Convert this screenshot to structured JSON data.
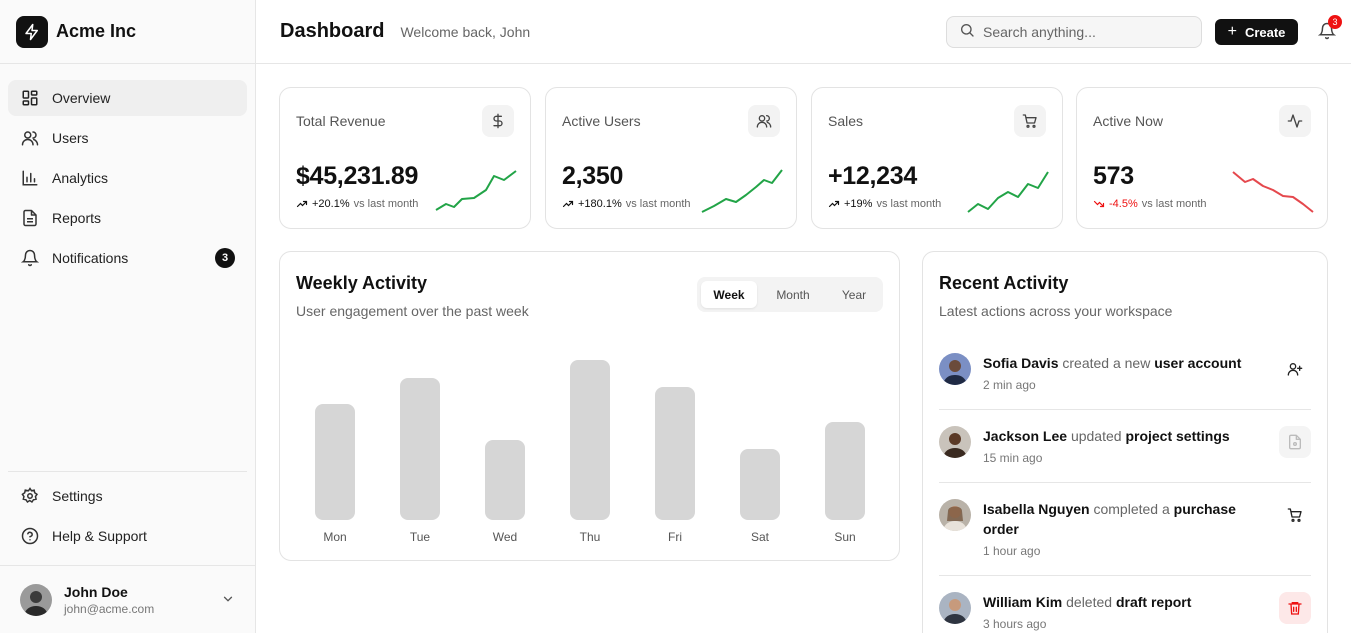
{
  "brand": {
    "name": "Acme Inc"
  },
  "sidebar": {
    "items": [
      {
        "label": "Overview",
        "icon": "grid-icon"
      },
      {
        "label": "Users",
        "icon": "users-icon"
      },
      {
        "label": "Analytics",
        "icon": "bar-chart-icon"
      },
      {
        "label": "Reports",
        "icon": "file-icon"
      },
      {
        "label": "Notifications",
        "icon": "bell-icon",
        "badge": "3"
      }
    ],
    "bottom_items": [
      {
        "label": "Settings",
        "icon": "gear-icon"
      },
      {
        "label": "Help & Support",
        "icon": "help-icon"
      }
    ],
    "user": {
      "name": "John Doe",
      "email": "john@acme.com"
    }
  },
  "header": {
    "title": "Dashboard",
    "welcome": "Welcome back, John",
    "search_placeholder": "Search anything...",
    "create_label": "Create",
    "notification_count": "3"
  },
  "stats": [
    {
      "label": "Total Revenue",
      "value": "$45,231.89",
      "change": "+20.1%",
      "vs": "vs last month",
      "trend": "up",
      "icon": "dollar-icon"
    },
    {
      "label": "Active Users",
      "value": "2,350",
      "change": "+180.1%",
      "vs": "vs last month",
      "trend": "up",
      "icon": "users-icon"
    },
    {
      "label": "Sales",
      "value": "+12,234",
      "change": "+19%",
      "vs": "vs last month",
      "trend": "up",
      "icon": "cart-icon"
    },
    {
      "label": "Active Now",
      "value": "573",
      "change": "-4.5%",
      "vs": "vs last month",
      "trend": "down",
      "icon": "activity-icon"
    }
  ],
  "colors": {
    "up": "#22a447",
    "down": "#e5484d",
    "bar": "#d6d6d6",
    "accent": "#111111"
  },
  "weekly": {
    "title": "Weekly Activity",
    "subtitle": "User engagement over the past week",
    "tabs": [
      {
        "label": "Week",
        "active": true
      },
      {
        "label": "Month",
        "active": false
      },
      {
        "label": "Year",
        "active": false
      }
    ]
  },
  "chart_data": {
    "type": "bar",
    "categories": [
      "Mon",
      "Tue",
      "Wed",
      "Thu",
      "Fri",
      "Sat",
      "Sun"
    ],
    "values": [
      116,
      142,
      80,
      160,
      133,
      71,
      98
    ],
    "title": "",
    "xlabel": "",
    "ylabel": "",
    "ylim": [
      0,
      160
    ],
    "grid": false
  },
  "recent": {
    "title": "Recent Activity",
    "subtitle": "Latest actions across your workspace",
    "items": [
      {
        "user": "Sofia Davis",
        "verb": "created a new",
        "target": "user account",
        "time": "2 min ago",
        "icon": "user-plus-icon"
      },
      {
        "user": "Jackson Lee",
        "verb": "updated",
        "target": "project settings",
        "time": "15 min ago",
        "icon": "file-settings-icon"
      },
      {
        "user": "Isabella Nguyen",
        "verb": "completed a",
        "target": "purchase order",
        "time": "1 hour ago",
        "icon": "cart-icon"
      },
      {
        "user": "William Kim",
        "verb": "deleted",
        "target": "draft report",
        "time": "3 hours ago",
        "icon": "trash-icon"
      }
    ]
  }
}
